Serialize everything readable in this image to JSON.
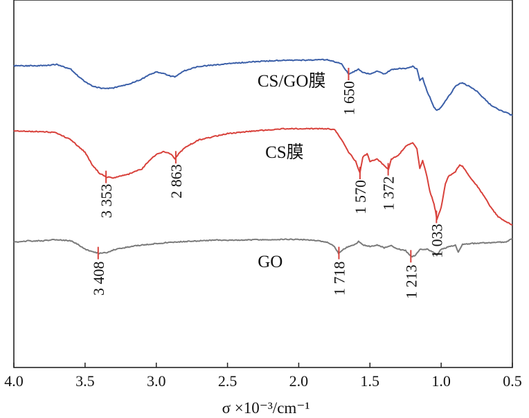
{
  "chart_data": {
    "type": "line",
    "title": "",
    "xlabel": "σ ×10⁻³/cm⁻¹",
    "ylabel": "",
    "xlim": [
      4.0,
      0.5
    ],
    "x_reversed": true,
    "grid": false,
    "legend": "none",
    "x_ticks": [
      "4.0",
      "3.5",
      "3.0",
      "2.5",
      "2.0",
      "1.5",
      "1.0",
      "0.5"
    ],
    "y_units": "transmittance (offset, arbitrary)",
    "series": [
      {
        "name": "CS/GO膜",
        "color": "#3b5fa8",
        "points": [
          [
            4.0,
            95
          ],
          [
            3.9,
            95
          ],
          [
            3.8,
            95
          ],
          [
            3.7,
            93
          ],
          [
            3.6,
            100
          ],
          [
            3.55,
            110
          ],
          [
            3.5,
            118
          ],
          [
            3.45,
            124
          ],
          [
            3.4,
            127
          ],
          [
            3.35,
            128
          ],
          [
            3.3,
            127
          ],
          [
            3.2,
            122
          ],
          [
            3.1,
            114
          ],
          [
            3.05,
            108
          ],
          [
            3.0,
            104
          ],
          [
            2.95,
            106
          ],
          [
            2.9,
            110
          ],
          [
            2.87,
            111
          ],
          [
            2.85,
            108
          ],
          [
            2.8,
            102
          ],
          [
            2.7,
            96
          ],
          [
            2.5,
            92
          ],
          [
            2.3,
            89
          ],
          [
            2.1,
            87
          ],
          [
            1.9,
            87
          ],
          [
            1.8,
            86
          ],
          [
            1.7,
            92
          ],
          [
            1.67,
            101
          ],
          [
            1.65,
            107
          ],
          [
            1.62,
            104
          ],
          [
            1.58,
            100
          ],
          [
            1.55,
            105
          ],
          [
            1.5,
            107
          ],
          [
            1.45,
            103
          ],
          [
            1.4,
            107
          ],
          [
            1.35,
            101
          ],
          [
            1.3,
            99
          ],
          [
            1.25,
            99
          ],
          [
            1.2,
            96
          ],
          [
            1.17,
            100
          ],
          [
            1.15,
            116
          ],
          [
            1.13,
            112
          ],
          [
            1.1,
            132
          ],
          [
            1.08,
            140
          ],
          [
            1.05,
            155
          ],
          [
            1.04,
            158
          ],
          [
            1.03,
            160
          ],
          [
            1.0,
            155
          ],
          [
            0.95,
            140
          ],
          [
            0.9,
            125
          ],
          [
            0.87,
            121
          ],
          [
            0.85,
            120
          ],
          [
            0.8,
            125
          ],
          [
            0.75,
            132
          ],
          [
            0.7,
            142
          ],
          [
            0.65,
            152
          ],
          [
            0.6,
            158
          ],
          [
            0.55,
            162
          ],
          [
            0.5,
            167
          ]
        ]
      },
      {
        "name": "CS膜",
        "color": "#d8413b",
        "points": [
          [
            4.0,
            189
          ],
          [
            3.9,
            190
          ],
          [
            3.8,
            190
          ],
          [
            3.7,
            192
          ],
          [
            3.6,
            202
          ],
          [
            3.5,
            220
          ],
          [
            3.45,
            238
          ],
          [
            3.4,
            250
          ],
          [
            3.35,
            256
          ],
          [
            3.3,
            257
          ],
          [
            3.2,
            252
          ],
          [
            3.1,
            244
          ],
          [
            3.05,
            232
          ],
          [
            3.0,
            223
          ],
          [
            2.95,
            219
          ],
          [
            2.9,
            222
          ],
          [
            2.87,
            229
          ],
          [
            2.85,
            224
          ],
          [
            2.8,
            213
          ],
          [
            2.7,
            202
          ],
          [
            2.5,
            193
          ],
          [
            2.3,
            189
          ],
          [
            2.1,
            186
          ],
          [
            1.9,
            186
          ],
          [
            1.8,
            186
          ],
          [
            1.75,
            187
          ],
          [
            1.7,
            201
          ],
          [
            1.65,
            220
          ],
          [
            1.6,
            233
          ],
          [
            1.57,
            250
          ],
          [
            1.55,
            227
          ],
          [
            1.52,
            222
          ],
          [
            1.5,
            233
          ],
          [
            1.45,
            230
          ],
          [
            1.4,
            239
          ],
          [
            1.37,
            245
          ],
          [
            1.35,
            230
          ],
          [
            1.3,
            224
          ],
          [
            1.25,
            212
          ],
          [
            1.2,
            206
          ],
          [
            1.17,
            215
          ],
          [
            1.15,
            243
          ],
          [
            1.13,
            232
          ],
          [
            1.1,
            255
          ],
          [
            1.08,
            276
          ],
          [
            1.05,
            295
          ],
          [
            1.04,
            305
          ],
          [
            1.03,
            317
          ],
          [
            1.0,
            300
          ],
          [
            0.97,
            265
          ],
          [
            0.95,
            255
          ],
          [
            0.9,
            248
          ],
          [
            0.87,
            238
          ],
          [
            0.85,
            240
          ],
          [
            0.8,
            255
          ],
          [
            0.75,
            268
          ],
          [
            0.7,
            283
          ],
          [
            0.65,
            300
          ],
          [
            0.6,
            313
          ],
          [
            0.55,
            320
          ],
          [
            0.5,
            325
          ]
        ]
      },
      {
        "name": "GO",
        "color": "#7a7a7a",
        "points": [
          [
            4.0,
            350
          ],
          [
            3.9,
            348
          ],
          [
            3.8,
            348
          ],
          [
            3.7,
            346
          ],
          [
            3.6,
            348
          ],
          [
            3.55,
            353
          ],
          [
            3.5,
            360
          ],
          [
            3.45,
            364
          ],
          [
            3.4,
            366
          ],
          [
            3.35,
            365
          ],
          [
            3.3,
            361
          ],
          [
            3.2,
            357
          ],
          [
            3.1,
            354
          ],
          [
            3.0,
            352
          ],
          [
            2.9,
            350
          ],
          [
            2.8,
            349
          ],
          [
            2.6,
            347
          ],
          [
            2.4,
            347
          ],
          [
            2.2,
            346
          ],
          [
            2.0,
            346
          ],
          [
            1.9,
            347
          ],
          [
            1.8,
            350
          ],
          [
            1.75,
            356
          ],
          [
            1.72,
            366
          ],
          [
            1.7,
            362
          ],
          [
            1.65,
            356
          ],
          [
            1.6,
            353
          ],
          [
            1.58,
            349
          ],
          [
            1.55,
            354
          ],
          [
            1.5,
            356
          ],
          [
            1.45,
            354
          ],
          [
            1.4,
            358
          ],
          [
            1.35,
            355
          ],
          [
            1.3,
            360
          ],
          [
            1.25,
            362
          ],
          [
            1.21,
            371
          ],
          [
            1.18,
            369
          ],
          [
            1.15,
            360
          ],
          [
            1.1,
            360
          ],
          [
            1.05,
            365
          ],
          [
            1.03,
            369
          ],
          [
            1.0,
            360
          ],
          [
            0.95,
            357
          ],
          [
            0.9,
            354
          ],
          [
            0.88,
            364
          ],
          [
            0.85,
            353
          ],
          [
            0.8,
            352
          ],
          [
            0.7,
            351
          ],
          [
            0.6,
            350
          ],
          [
            0.55,
            350
          ],
          [
            0.5,
            345
          ]
        ]
      }
    ],
    "series_labels": [
      {
        "text": "CS/GO膜",
        "series": "CS/GO膜"
      },
      {
        "text": "CS膜",
        "series": "CS膜"
      },
      {
        "text": "GO",
        "series": "GO"
      }
    ],
    "peaks": [
      {
        "series": "CS/GO膜",
        "x": 1.65,
        "label": "1 650"
      },
      {
        "series": "CS膜",
        "x": 3.353,
        "label": "3 353"
      },
      {
        "series": "CS膜",
        "x": 2.863,
        "label": "2 863"
      },
      {
        "series": "CS膜",
        "x": 1.57,
        "label": "1 570"
      },
      {
        "series": "CS膜",
        "x": 1.372,
        "label": "1 372"
      },
      {
        "series": "CS膜",
        "x": 1.033,
        "label": "1 033"
      },
      {
        "series": "GO",
        "x": 3.408,
        "label": "3 408"
      },
      {
        "series": "GO",
        "x": 1.718,
        "label": "1 718"
      },
      {
        "series": "GO",
        "x": 1.213,
        "label": "1 213"
      }
    ],
    "peak_marker_color": "#d8413b"
  }
}
